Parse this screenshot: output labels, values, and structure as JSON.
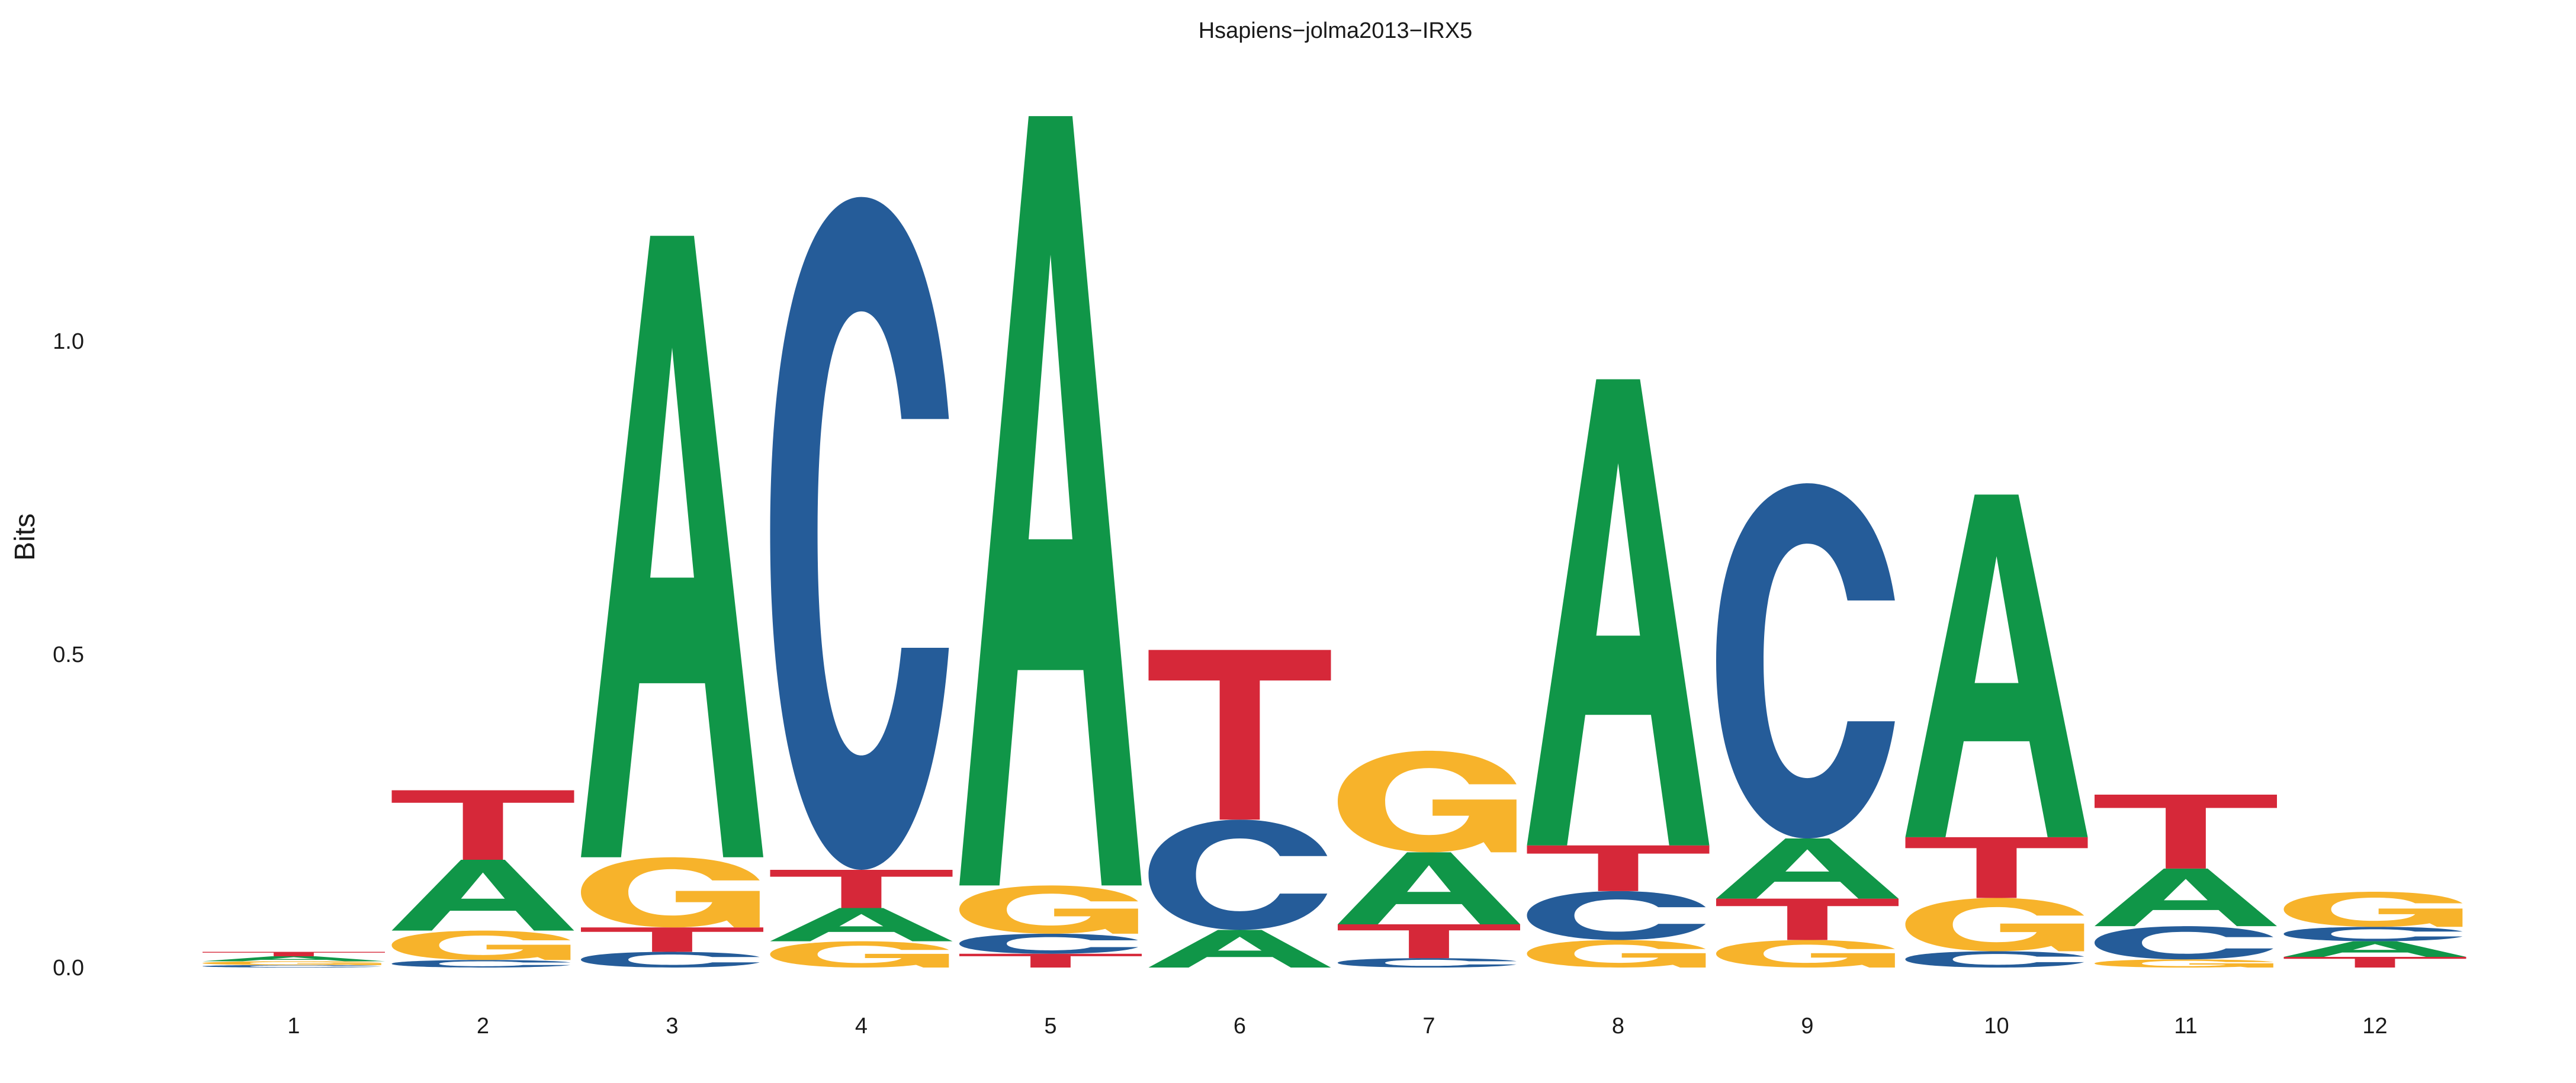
{
  "chart_data": {
    "type": "sequence-logo",
    "title": "Hsapiens−jolma2013−IRX5",
    "xlabel": "",
    "ylabel": "Bits",
    "ylim": [
      0,
      1.45
    ],
    "yticks": [
      {
        "value": 0.0,
        "label": "0.0"
      },
      {
        "value": 0.5,
        "label": "0.5"
      },
      {
        "value": 1.0,
        "label": "1.0"
      }
    ],
    "grid": false,
    "colors": {
      "A": "#109648",
      "C": "#255c99",
      "G": "#f7b32b",
      "T": "#d62839"
    },
    "positions": [
      {
        "label": "1",
        "stack": [
          [
            "C",
            0.004
          ],
          [
            "G",
            0.006
          ],
          [
            "A",
            0.008
          ],
          [
            "T",
            0.007
          ]
        ]
      },
      {
        "label": "2",
        "stack": [
          [
            "C",
            0.012
          ],
          [
            "G",
            0.047
          ],
          [
            "A",
            0.113
          ],
          [
            "T",
            0.111
          ]
        ]
      },
      {
        "label": "3",
        "stack": [
          [
            "C",
            0.025
          ],
          [
            "T",
            0.039
          ],
          [
            "G",
            0.112
          ],
          [
            "A",
            0.992
          ]
        ]
      },
      {
        "label": "4",
        "stack": [
          [
            "G",
            0.042
          ],
          [
            "A",
            0.053
          ],
          [
            "T",
            0.061
          ],
          [
            "C",
            1.074
          ]
        ]
      },
      {
        "label": "5",
        "stack": [
          [
            "T",
            0.022
          ],
          [
            "C",
            0.032
          ],
          [
            "G",
            0.077
          ],
          [
            "A",
            1.228
          ]
        ]
      },
      {
        "label": "6",
        "stack": [
          [
            "A",
            0.06
          ],
          [
            "C",
            0.176
          ],
          [
            "T",
            0.271
          ]
        ]
      },
      {
        "label": "7",
        "stack": [
          [
            "C",
            0.015
          ],
          [
            "T",
            0.054
          ],
          [
            "A",
            0.115
          ],
          [
            "G",
            0.162
          ]
        ]
      },
      {
        "label": "8",
        "stack": [
          [
            "G",
            0.044
          ],
          [
            "C",
            0.078
          ],
          [
            "T",
            0.073
          ],
          [
            "A",
            0.744
          ]
        ]
      },
      {
        "label": "9",
        "stack": [
          [
            "G",
            0.044
          ],
          [
            "T",
            0.066
          ],
          [
            "A",
            0.096
          ],
          [
            "C",
            0.567
          ]
        ]
      },
      {
        "label": "10",
        "stack": [
          [
            "C",
            0.026
          ],
          [
            "G",
            0.085
          ],
          [
            "T",
            0.097
          ],
          [
            "A",
            0.547
          ]
        ]
      },
      {
        "label": "11",
        "stack": [
          [
            "G",
            0.013
          ],
          [
            "C",
            0.053
          ],
          [
            "A",
            0.092
          ],
          [
            "T",
            0.118
          ]
        ]
      },
      {
        "label": "12",
        "stack": [
          [
            "T",
            0.017
          ],
          [
            "A",
            0.025
          ],
          [
            "C",
            0.023
          ],
          [
            "G",
            0.056
          ]
        ]
      }
    ]
  }
}
